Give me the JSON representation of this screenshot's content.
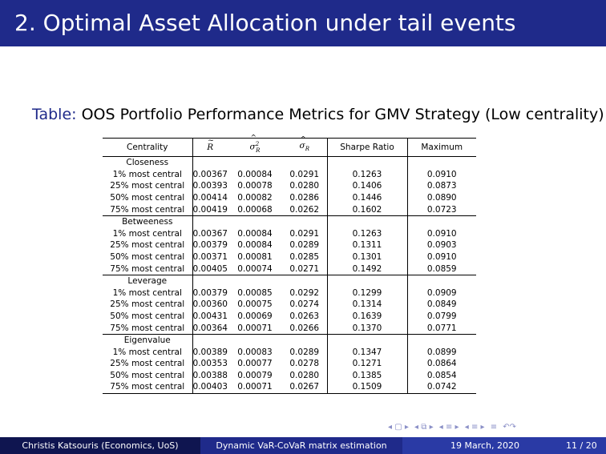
{
  "slide": {
    "title": "2. Optimal Asset Allocation under tail events",
    "caption_label": "Table:",
    "caption_text": "OOS Portfolio Performance Metrics for GMV Strategy (Low centrality)"
  },
  "table": {
    "headers": [
      "Centrality",
      "R",
      "σ",
      "σ",
      "Sharpe Ratio",
      "Maximum"
    ],
    "header_decor": {
      "r_bar": "~",
      "sigma2_sup": "2",
      "sigma_sub": "R",
      "hat": "^"
    },
    "groups": [
      {
        "name": "Closeness",
        "rows": [
          [
            "1% most central",
            "0.00367",
            "0.00084",
            "0.0291",
            "0.1263",
            "0.0910"
          ],
          [
            "25% most central",
            "0.00393",
            "0.00078",
            "0.0280",
            "0.1406",
            "0.0873"
          ],
          [
            "50% most central",
            "0.00414",
            "0.00082",
            "0.0286",
            "0.1446",
            "0.0890"
          ],
          [
            "75% most central",
            "0.00419",
            "0.00068",
            "0.0262",
            "0.1602",
            "0.0723"
          ]
        ]
      },
      {
        "name": "Betweeness",
        "rows": [
          [
            "1% most central",
            "0.00367",
            "0.00084",
            "0.0291",
            "0.1263",
            "0.0910"
          ],
          [
            "25% most central",
            "0.00379",
            "0.00084",
            "0.0289",
            "0.1311",
            "0.0903"
          ],
          [
            "50% most central",
            "0.00371",
            "0.00081",
            "0.0285",
            "0.1301",
            "0.0910"
          ],
          [
            "75% most central",
            "0.00405",
            "0.00074",
            "0.0271",
            "0.1492",
            "0.0859"
          ]
        ]
      },
      {
        "name": "Leverage",
        "rows": [
          [
            "1% most central",
            "0.00379",
            "0.00085",
            "0.0292",
            "0.1299",
            "0.0909"
          ],
          [
            "25% most central",
            "0.00360",
            "0.00075",
            "0.0274",
            "0.1314",
            "0.0849"
          ],
          [
            "50% most central",
            "0.00431",
            "0.00069",
            "0.0263",
            "0.1639",
            "0.0799"
          ],
          [
            "75% most central",
            "0.00364",
            "0.00071",
            "0.0266",
            "0.1370",
            "0.0771"
          ]
        ]
      },
      {
        "name": "Eigenvalue",
        "rows": [
          [
            "1% most central",
            "0.00389",
            "0.00083",
            "0.0289",
            "0.1347",
            "0.0899"
          ],
          [
            "25% most central",
            "0.00353",
            "0.00077",
            "0.0278",
            "0.1271",
            "0.0864"
          ],
          [
            "50% most central",
            "0.00388",
            "0.00079",
            "0.0280",
            "0.1385",
            "0.0854"
          ],
          [
            "75% most central",
            "0.00403",
            "0.00071",
            "0.0267",
            "0.1509",
            "0.0742"
          ]
        ]
      }
    ]
  },
  "footer": {
    "author": "Christis Katsouris (Economics, UoS)",
    "talk": "Dynamic VaR-CoVaR matrix estimation",
    "date": "19 March, 2020",
    "page": "11 / 20"
  },
  "nav": [
    "◂ ▢ ▸",
    "◂ ⧉ ▸",
    "◂ ≡ ▸",
    "◂ ≡ ▸",
    "≡",
    "↶↷"
  ],
  "colors": {
    "title_bar": "#1f2a8a",
    "caption_label": "#1f2a8a"
  }
}
